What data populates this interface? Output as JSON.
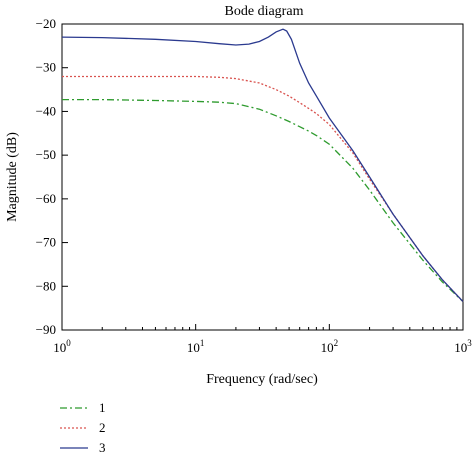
{
  "chart_data": {
    "type": "line",
    "title": "Bode diagram",
    "xlabel": "Frequency (rad/sec)",
    "ylabel": "Magnitude (dB)",
    "xscale": "log",
    "xlim": [
      1,
      1000
    ],
    "ylim": [
      -90,
      -20
    ],
    "x_ticks": [
      {
        "value": 1,
        "base": "10",
        "exp": "0"
      },
      {
        "value": 10,
        "base": "10",
        "exp": "1"
      },
      {
        "value": 100,
        "base": "10",
        "exp": "2"
      },
      {
        "value": 1000,
        "base": "10",
        "exp": "3"
      }
    ],
    "y_ticks": [
      -20,
      -30,
      -40,
      -50,
      -60,
      -70,
      -80,
      -90
    ],
    "grid": false,
    "legend_position": "bottom-left, below plot",
    "series": [
      {
        "name": "1",
        "color": "#2e9b2e",
        "style": "dash-dot",
        "x": [
          1,
          2,
          5,
          10,
          15,
          20,
          30,
          40,
          50,
          60,
          70,
          80,
          100,
          150,
          200,
          300,
          500,
          700,
          1000
        ],
        "y": [
          -37.3,
          -37.3,
          -37.5,
          -37.7,
          -37.9,
          -38.2,
          -39.5,
          -41.0,
          -42.3,
          -43.5,
          -44.5,
          -45.5,
          -47.5,
          -53.0,
          -58.0,
          -65.5,
          -74.0,
          -79.0,
          -83.5
        ]
      },
      {
        "name": "2",
        "color": "#d9534f",
        "style": "dotted",
        "x": [
          1,
          2,
          5,
          10,
          15,
          20,
          30,
          40,
          50,
          60,
          70,
          80,
          100,
          150,
          200,
          300,
          500,
          700,
          1000
        ],
        "y": [
          -32.0,
          -32.0,
          -32.0,
          -32.0,
          -32.2,
          -32.5,
          -33.5,
          -35.0,
          -36.5,
          -38.0,
          -39.3,
          -40.5,
          -43.0,
          -49.5,
          -55.5,
          -63.5,
          -73.0,
          -78.5,
          -83.5
        ]
      },
      {
        "name": "3",
        "color": "#2b3a8f",
        "style": "solid",
        "x": [
          1,
          2,
          5,
          10,
          15,
          20,
          25,
          30,
          35,
          40,
          45,
          48,
          52,
          60,
          70,
          80,
          100,
          150,
          200,
          300,
          500,
          700,
          1000
        ],
        "y": [
          -23.0,
          -23.1,
          -23.5,
          -24.0,
          -24.5,
          -24.8,
          -24.6,
          -24.0,
          -23.0,
          -21.8,
          -21.2,
          -21.6,
          -23.5,
          -29.0,
          -33.5,
          -36.5,
          -41.5,
          -49.0,
          -55.0,
          -63.5,
          -73.0,
          -78.5,
          -83.5
        ]
      }
    ]
  }
}
